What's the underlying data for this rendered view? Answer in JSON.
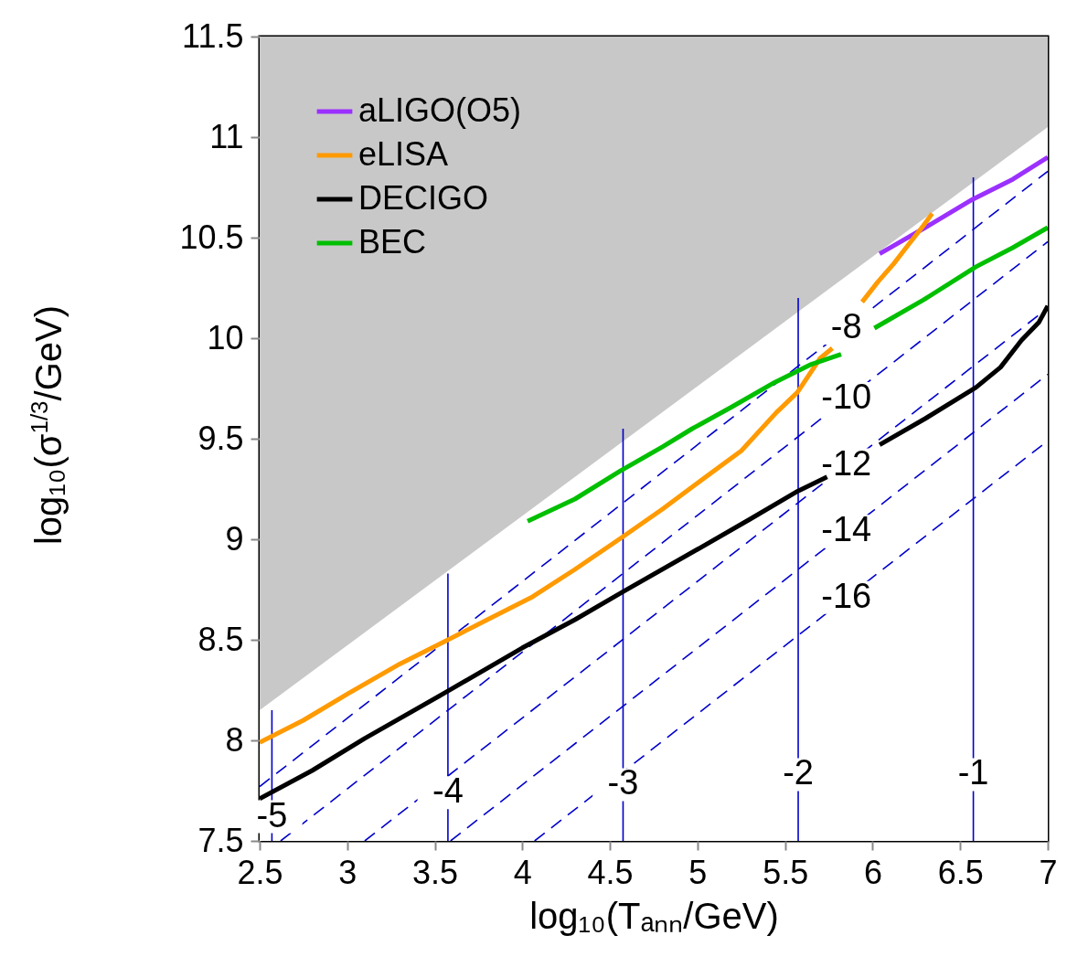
{
  "chart_data": {
    "type": "line",
    "xlabel": "log₁₀(Tₐₙₙ/GeV)",
    "ylabel": "log₁₀(σ$^{1/3}$/GeV)",
    "xlim": [
      2.5,
      7
    ],
    "ylim": [
      7.5,
      11.5
    ],
    "xticks": [
      2.5,
      3,
      3.5,
      4,
      4.5,
      5,
      5.5,
      6,
      6.5,
      7
    ],
    "yticks": [
      7.5,
      8,
      8.5,
      9,
      9.5,
      10,
      10.5,
      11,
      11.5
    ],
    "grid": false,
    "legend": "top left",
    "line_style": "solid",
    "bands": [
      {
        "axis": "y",
        "from": 7.5,
        "to": 11.5,
        "color": "#c8c8c8"
      }
    ],
    "series": [
      {
        "type": "area",
        "color": "#ffffff",
        "x": [
          2.5,
          7
        ],
        "values": [
          8.15,
          11.05
        ]
      },
      {
        "color": "#0000cc",
        "line_style": "dashed",
        "x": [
          2.5,
          7
        ],
        "values": [
          7.77,
          10.83
        ]
      },
      {
        "color": "#0000cc",
        "line_style": "dashed",
        "x": [
          2.62,
          7
        ],
        "values": [
          7.5,
          10.48
        ]
      },
      {
        "color": "#0000cc",
        "line_style": "dashed",
        "x": [
          3.1,
          7
        ],
        "values": [
          7.5,
          10.15
        ]
      },
      {
        "color": "#0000cc",
        "line_style": "dashed",
        "x": [
          3.59,
          7
        ],
        "values": [
          7.5,
          9.82
        ]
      },
      {
        "color": "#0000cc",
        "line_style": "dashed",
        "x": [
          4.07,
          7
        ],
        "values": [
          7.5,
          9.49
        ]
      },
      {
        "color": "#0000cc",
        "x": [
          2.57,
          2.57
        ],
        "values": [
          7.5,
          8.15
        ]
      },
      {
        "color": "#0000cc",
        "x": [
          3.575,
          3.575
        ],
        "values": [
          7.5,
          8.83
        ]
      },
      {
        "color": "#0000cc",
        "x": [
          4.575,
          4.575
        ],
        "values": [
          7.5,
          9.55
        ]
      },
      {
        "color": "#0000cc",
        "x": [
          5.575,
          5.575
        ],
        "values": [
          7.5,
          10.2
        ]
      },
      {
        "color": "#0000cc",
        "x": [
          6.575,
          6.575
        ],
        "values": [
          7.5,
          10.8
        ]
      },
      {
        "name": "aLIGO(O5)",
        "color": "#9b30ff",
        "x": [
          6.04,
          6.3,
          6.57,
          6.8,
          7
        ],
        "values": [
          10.42,
          10.55,
          10.69,
          10.79,
          10.9
        ]
      },
      {
        "name": "eLISA",
        "color": "#ff9a00",
        "x": [
          2.5,
          2.75,
          3.0,
          3.3,
          3.575,
          3.8,
          4.05,
          4.3,
          4.57,
          4.8,
          5.0,
          5.25,
          5.45,
          5.57,
          5.7,
          5.77,
          5.85,
          5.94,
          6.03,
          6.12,
          6.2,
          6.29,
          6.34
        ],
        "values": [
          7.99,
          8.1,
          8.23,
          8.38,
          8.5,
          8.6,
          8.71,
          8.85,
          9.01,
          9.15,
          9.28,
          9.44,
          9.63,
          9.73,
          9.9,
          9.95,
          null,
          10.18,
          10.28,
          10.37,
          10.46,
          10.56,
          10.62
        ]
      },
      {
        "name": "DECIGO",
        "color": "#000000",
        "x": [
          2.5,
          2.8,
          3.1,
          3.565,
          4.0,
          4.3,
          4.577,
          5.0,
          5.3,
          5.574,
          5.74,
          5.9,
          6.04,
          6.3,
          6.59,
          6.73,
          6.85,
          6.95,
          7
        ],
        "values": [
          7.71,
          7.85,
          8.01,
          8.24,
          8.46,
          8.6,
          8.74,
          8.95,
          9.1,
          9.24,
          9.31,
          null,
          9.47,
          9.6,
          9.755,
          9.855,
          9.99,
          10.08,
          10.16
        ]
      },
      {
        "name": "BEC",
        "color": "#00bf00",
        "x": [
          4.03,
          4.3,
          4.56,
          4.8,
          4.97,
          5.2,
          5.44,
          5.65,
          5.82,
          5.9,
          6.01,
          6.29,
          6.59,
          6.8,
          7
        ],
        "values": [
          9.09,
          9.2,
          9.34,
          9.46,
          9.55,
          9.66,
          9.78,
          9.87,
          9.92,
          null,
          10.05,
          10.19,
          10.355,
          10.45,
          10.55
        ]
      }
    ],
    "annotations": [
      {
        "text": "-5",
        "x": 2.57,
        "y": 7.62
      },
      {
        "text": "-4",
        "x": 3.575,
        "y": 7.74
      },
      {
        "text": "-3",
        "x": 4.575,
        "y": 7.78
      },
      {
        "text": "-2",
        "x": 5.575,
        "y": 7.83
      },
      {
        "text": "-1",
        "x": 6.575,
        "y": 7.83
      },
      {
        "text": "-8",
        "x": 5.85,
        "y": 10.05
      },
      {
        "text": "-10",
        "x": 5.85,
        "y": 9.7
      },
      {
        "text": "-12",
        "x": 5.85,
        "y": 9.37
      },
      {
        "text": "-14",
        "x": 5.85,
        "y": 9.04
      },
      {
        "text": "-16",
        "x": 5.85,
        "y": 8.71
      }
    ]
  }
}
